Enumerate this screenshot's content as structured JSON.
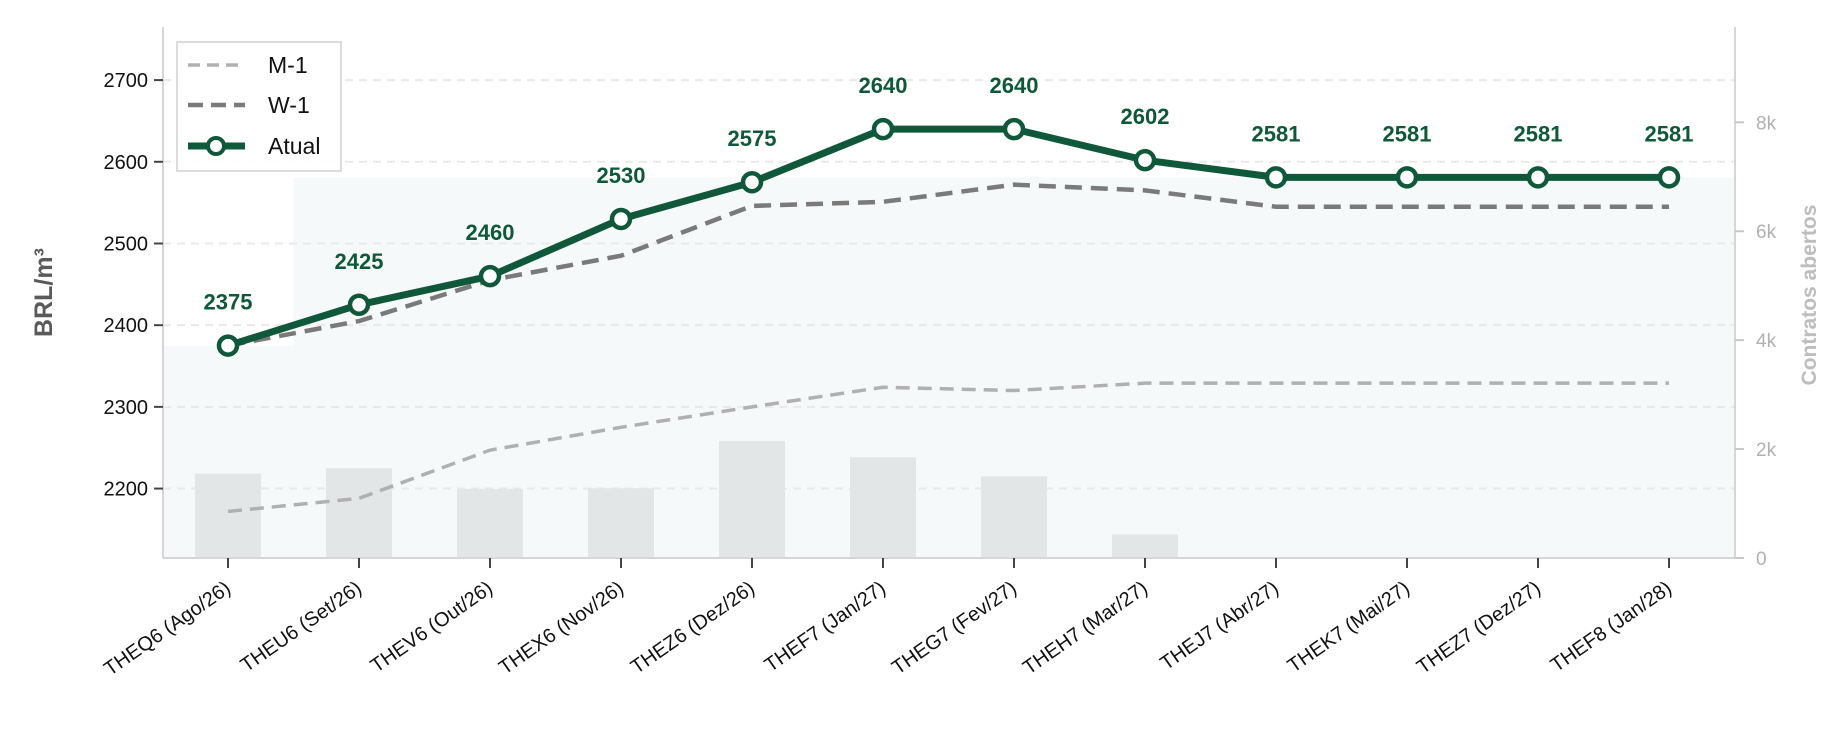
{
  "chart_data": {
    "type": "line",
    "title": "",
    "xlabel": "",
    "ylabel": "BRL/m³",
    "y2label": "Contratos abertos",
    "categories": [
      "THEQ6 (Ago/26)",
      "THEU6 (Set/26)",
      "THEV6 (Out/26)",
      "THEX6 (Nov/26)",
      "THEZ6 (Dez/26)",
      "THEF7 (Jan/27)",
      "THEG7 (Fev/27)",
      "THEH7 (Mar/27)",
      "THEJ7 (Abr/27)",
      "THEK7 (Mai/27)",
      "THEZ7 (Dez/27)",
      "THEF8 (Jan/28)"
    ],
    "ylim": [
      2115,
      2765
    ],
    "yticks": [
      2200,
      2300,
      2400,
      2500,
      2600,
      2700
    ],
    "y2lim": [
      0,
      9750
    ],
    "y2ticks": [
      0,
      2000,
      4000,
      6000,
      8000
    ],
    "y2ticklabels": [
      "0",
      "2k",
      "4k",
      "6k",
      "8k"
    ],
    "grid": true,
    "legend_position": "top-left",
    "series": [
      {
        "name": "M-1",
        "style": "dashed",
        "color": "#b0b0b0",
        "values": [
          2172,
          2188,
          2247,
          2275,
          2300,
          2324,
          2320,
          2329,
          2329,
          2329,
          2329,
          2329
        ]
      },
      {
        "name": "W-1",
        "style": "dashed",
        "color": "#7a7a7a",
        "values": [
          2375,
          2405,
          2455,
          2485,
          2546,
          2551,
          2572,
          2565,
          2545,
          2545,
          2545,
          2545
        ]
      },
      {
        "name": "Atual",
        "style": "solid-marker",
        "color": "#10583a",
        "values": [
          2375,
          2425,
          2460,
          2530,
          2575,
          2640,
          2640,
          2602,
          2581,
          2581,
          2581,
          2581
        ],
        "data_labels": [
          "2375",
          "2425",
          "2460",
          "2530",
          "2575",
          "2640",
          "2640",
          "2602",
          "2581",
          "2581",
          "2581",
          "2581"
        ]
      }
    ],
    "open_interest": {
      "axis": "right",
      "color": "#e3e6e6",
      "values": [
        1550,
        1650,
        1270,
        1280,
        2150,
        1850,
        1500,
        430,
        0,
        0,
        0,
        0
      ]
    },
    "shaded_band": {
      "color": "#f6f9fa",
      "first_value": 2375,
      "rest_value": 2581
    }
  }
}
